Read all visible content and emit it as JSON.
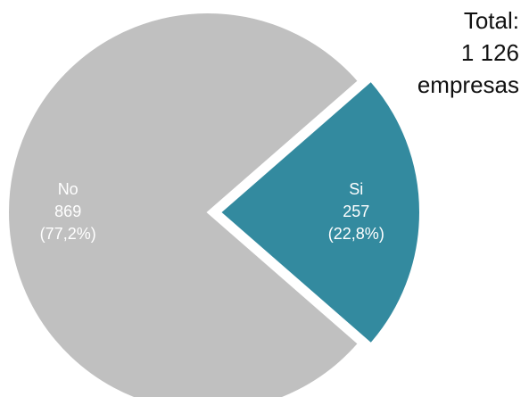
{
  "chart_data": {
    "type": "pie",
    "categories": [
      "No",
      "Si"
    ],
    "values": [
      869,
      257
    ],
    "percent_labels": [
      "(77,2%)",
      "(22,8%)"
    ],
    "value_labels": [
      "869",
      "257"
    ],
    "colors": [
      "#c0c0c0",
      "#338a9f"
    ],
    "exploded": [
      "Si"
    ],
    "annotation": {
      "line1": "Total:",
      "line2": "1 126",
      "line3": "empresas"
    }
  }
}
